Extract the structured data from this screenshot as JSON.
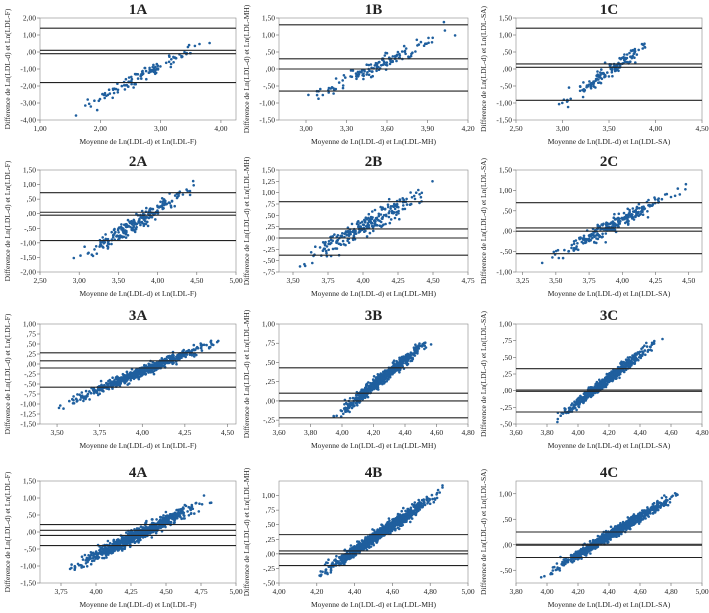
{
  "figure": {
    "point_color": "#1f5f9e",
    "line_color": "#222222"
  },
  "chart_data": [
    {
      "id": "1A",
      "type": "scatter",
      "title": "1A",
      "xlabel": "Moyenne de Ln(LDL-d) et Ln(LDL-F)",
      "ylabel": "Difference de Ln(LDL-d) et Ln(LDL-F)",
      "xlim": [
        1.0,
        4.25
      ],
      "ylim": [
        -4.0,
        2.0
      ],
      "xticks": [
        "1,00",
        "2,00",
        "3,00",
        "4,00"
      ],
      "xtick_values": [
        1,
        2,
        3,
        4
      ],
      "yticks": [
        "-4,00",
        "-3,00",
        "-2,00",
        "-1,00",
        ",00",
        "1,00",
        "2,00"
      ],
      "ytick_values": [
        -4,
        -3,
        -2,
        -1,
        0,
        1,
        2
      ],
      "hlines": [
        1.4,
        0.1,
        -0.1,
        -1.8
      ],
      "n_points": 120,
      "trend": {
        "x": [
          1.4,
          4.0
        ],
        "y": [
          -3.8,
          1.0
        ]
      },
      "spread": 0.12
    },
    {
      "id": "1B",
      "type": "scatter",
      "title": "1B",
      "xlabel": "Moyenne de Ln(LDL-d) et Ln(LDL-MH)",
      "ylabel": "Difference de Ln(LDL-d) et Ln(LDL-MH)",
      "xlim": [
        2.8,
        4.2
      ],
      "ylim": [
        -1.5,
        1.5
      ],
      "xticks": [
        "3,00",
        "3,30",
        "3,60",
        "3,90",
        "4,20"
      ],
      "xtick_values": [
        3.0,
        3.3,
        3.6,
        3.9,
        4.2
      ],
      "yticks": [
        "-1,50",
        "-1,00",
        "-,50",
        ",00",
        ",50",
        "1,00",
        "1,50"
      ],
      "ytick_values": [
        -1.5,
        -1,
        -0.5,
        0,
        0.5,
        1,
        1.5
      ],
      "hlines": [
        1.3,
        0.3,
        0.0,
        -0.65
      ],
      "n_points": 140,
      "trend": {
        "x": [
          2.9,
          4.15
        ],
        "y": [
          -1.1,
          1.25
        ]
      },
      "spread": 0.15
    },
    {
      "id": "1C",
      "type": "scatter",
      "title": "1C",
      "xlabel": "Moyenne de Ln(LDL-d) et Ln(LDL-SA)",
      "ylabel": "Difference de Ln(LDL-d) et Ln(LDL-SA)",
      "xlim": [
        2.5,
        4.5
      ],
      "ylim": [
        -1.5,
        1.5
      ],
      "xticks": [
        "2,50",
        "3,00",
        "3,50",
        "4,00",
        "4,50"
      ],
      "xtick_values": [
        2.5,
        3.0,
        3.5,
        4.0,
        4.5
      ],
      "yticks": [
        "-1,50",
        "-1,00",
        "-,50",
        ",00",
        ",50",
        "1,00",
        "1,50"
      ],
      "ytick_values": [
        -1.5,
        -1,
        -0.5,
        0,
        0.5,
        1,
        1.5
      ],
      "hlines": [
        1.2,
        0.15,
        0.05,
        -0.92
      ],
      "n_points": 140,
      "trend": {
        "x": [
          2.8,
          4.1
        ],
        "y": [
          -1.4,
          1.1
        ]
      },
      "spread": 0.15
    },
    {
      "id": "2A",
      "type": "scatter",
      "title": "2A",
      "xlabel": "Moyenne de Ln(LDL-d) et Ln(LDL-F)",
      "ylabel": "Difference de Ln(LDL-d) et Ln(LDL-F)",
      "xlim": [
        2.5,
        5.0
      ],
      "ylim": [
        -2.0,
        1.5
      ],
      "xticks": [
        "2,50",
        "3,00",
        "3,50",
        "4,00",
        "4,50",
        "5,00"
      ],
      "xtick_values": [
        2.5,
        3.0,
        3.5,
        4.0,
        4.5,
        5.0
      ],
      "yticks": [
        "-2,00",
        "-1,50",
        "-1,00",
        "-,50",
        ",00",
        ",50",
        "1,00",
        "1,50"
      ],
      "ytick_values": [
        -2,
        -1.5,
        -1,
        -0.5,
        0,
        0.5,
        1,
        1.5
      ],
      "hlines": [
        0.72,
        0.05,
        -0.05,
        -0.92
      ],
      "n_points": 240,
      "trend": {
        "x": [
          2.8,
          4.6
        ],
        "y": [
          -1.9,
          1.2
        ]
      },
      "spread": 0.15
    },
    {
      "id": "2B",
      "type": "scatter",
      "title": "2B",
      "xlabel": "Moyenne de Ln(LDL-d) et Ln(LDL-MH)",
      "ylabel": "Difference de Ln(LDL-d) et Ln(LDL-MH)",
      "xlim": [
        3.4,
        4.75
      ],
      "ylim": [
        -0.75,
        1.5
      ],
      "xticks": [
        "3,50",
        "3,75",
        "4,00",
        "4,25",
        "4,50",
        "4,75"
      ],
      "xtick_values": [
        3.5,
        3.75,
        4.0,
        4.25,
        4.5,
        4.75
      ],
      "yticks": [
        "-,75",
        "-,50",
        "-,25",
        ",00",
        ",25",
        ",50",
        ",75",
        "1,00",
        "1,25",
        "1,50"
      ],
      "ytick_values": [
        -0.75,
        -0.5,
        -0.25,
        0,
        0.25,
        0.5,
        0.75,
        1,
        1.25,
        1.5
      ],
      "hlines": [
        0.8,
        0.2,
        0.0,
        -0.38
      ],
      "n_points": 260,
      "trend": {
        "x": [
          3.45,
          4.6
        ],
        "y": [
          -0.7,
          1.3
        ]
      },
      "spread": 0.18
    },
    {
      "id": "2C",
      "type": "scatter",
      "title": "2C",
      "xlabel": "Moyenne de Ln(LDL-d) et Ln(LDL-SA)",
      "ylabel": "Difference de Ln(LDL-d) et Ln(LDL-SA)",
      "xlim": [
        3.2,
        4.6
      ],
      "ylim": [
        -1.0,
        1.5
      ],
      "xticks": [
        "3,25",
        "3,50",
        "3,75",
        "4,00",
        "4,25",
        "4,50"
      ],
      "xtick_values": [
        3.25,
        3.5,
        3.75,
        4.0,
        4.25,
        4.5
      ],
      "yticks": [
        "-1,00",
        "-,50",
        ",00",
        ",50",
        "1,00",
        "1,50"
      ],
      "ytick_values": [
        -1,
        -0.5,
        0,
        0.5,
        1,
        1.5
      ],
      "hlines": [
        0.7,
        0.08,
        0.0,
        -0.55
      ],
      "n_points": 260,
      "trend": {
        "x": [
          3.3,
          4.55
        ],
        "y": [
          -0.9,
          1.2
        ]
      },
      "spread": 0.15
    },
    {
      "id": "3A",
      "type": "scatter",
      "title": "3A",
      "xlabel": "Moyenne de Ln(LDL-d) et Ln(LDL-F)",
      "ylabel": "Difference de Ln(LDL-d) et Ln(LDL-F)",
      "xlim": [
        3.4,
        4.55
      ],
      "ylim": [
        -1.5,
        1.0
      ],
      "xticks": [
        "3,50",
        "3,75",
        "4,00",
        "4,25",
        "4,50"
      ],
      "xtick_values": [
        3.5,
        3.75,
        4.0,
        4.25,
        4.5
      ],
      "yticks": [
        "-1,50",
        "-1,25",
        "-1,00",
        "-,75",
        "-,50",
        "-,25",
        ",00",
        ",25",
        ",50",
        ",75",
        "1,00"
      ],
      "ytick_values": [
        -1.5,
        -1.25,
        -1,
        -0.75,
        -0.5,
        -0.25,
        0,
        0.25,
        0.5,
        0.75,
        1
      ],
      "hlines": [
        0.28,
        0.08,
        -0.1,
        -0.58
      ],
      "n_points": 600,
      "trend": {
        "x": [
          3.45,
          4.52
        ],
        "y": [
          -1.15,
          0.72
        ]
      },
      "spread": 0.1
    },
    {
      "id": "3B",
      "type": "scatter",
      "title": "3B",
      "xlabel": "Moyenne de Ln(LDL-d) et Ln(LDL-MH)",
      "ylabel": "Difference de Ln(LDL-d) et Ln(LDL-MH)",
      "xlim": [
        3.6,
        4.8
      ],
      "ylim": [
        -0.3,
        1.0
      ],
      "xticks": [
        "3,60",
        "3,80",
        "4,00",
        "4,20",
        "4,40",
        "4,60",
        "4,80"
      ],
      "xtick_values": [
        3.6,
        3.8,
        4.0,
        4.2,
        4.4,
        4.6,
        4.8
      ],
      "yticks": [
        "-,25",
        ",00",
        ",25",
        ",50",
        ",75",
        "1,00"
      ],
      "ytick_values": [
        -0.25,
        0,
        0.25,
        0.5,
        0.75,
        1
      ],
      "hlines": [
        0.43,
        0.1,
        0.0,
        -0.22
      ],
      "n_points": 650,
      "trend": {
        "x": [
          3.9,
          4.62
        ],
        "y": [
          -0.3,
          0.9
        ]
      },
      "spread": 0.12
    },
    {
      "id": "3C",
      "type": "scatter",
      "title": "3C",
      "xlabel": "Moyenne de Ln(LDL-d) et Ln(LDL-SA)",
      "ylabel": "Difference de Ln(LDL-d) et Ln(LDL-SA)",
      "xlim": [
        3.6,
        4.8
      ],
      "ylim": [
        -0.5,
        1.0
      ],
      "xticks": [
        "3,60",
        "3,80",
        "4,00",
        "4,20",
        "4,40",
        "4,60",
        "4,80"
      ],
      "xtick_values": [
        3.6,
        3.8,
        4.0,
        4.2,
        4.4,
        4.6,
        4.8
      ],
      "yticks": [
        "-,50",
        "-,25",
        ",00",
        ",25",
        ",50",
        ",75",
        "1,00"
      ],
      "ytick_values": [
        -0.5,
        -0.25,
        0,
        0.25,
        0.5,
        0.75,
        1
      ],
      "hlines": [
        0.33,
        0.01,
        -0.01,
        -0.32
      ],
      "n_points": 650,
      "trend": {
        "x": [
          3.82,
          4.57
        ],
        "y": [
          -0.5,
          0.85
        ]
      },
      "spread": 0.1
    },
    {
      "id": "4A",
      "type": "scatter",
      "title": "4A",
      "xlabel": "Moyenne de Ln(LDL-d) et Ln(LDL-F)",
      "ylabel": "Difference de Ln(LDL-d) et Ln(LDL-F)",
      "xlim": [
        3.6,
        5.0
      ],
      "ylim": [
        -1.5,
        1.5
      ],
      "xticks": [
        "3,75",
        "4,00",
        "4,25",
        "4,50",
        "4,75",
        "5,00"
      ],
      "xtick_values": [
        3.75,
        4.0,
        4.25,
        4.5,
        4.75,
        5.0
      ],
      "yticks": [
        "-1,50",
        "-1,00",
        "-,50",
        ",00",
        ",50",
        "1,00",
        "1,50"
      ],
      "ytick_values": [
        -1.5,
        -1,
        -0.5,
        0,
        0.5,
        1,
        1.5
      ],
      "hlines": [
        0.22,
        0.05,
        -0.1,
        -0.4
      ],
      "n_points": 900,
      "trend": {
        "x": [
          3.75,
          4.85
        ],
        "y": [
          -1.2,
          1.05
        ]
      },
      "spread": 0.12
    },
    {
      "id": "4B",
      "type": "scatter",
      "title": "4B",
      "xlabel": "Moyenne de Ln(LDL-d) et Ln(LDL-MH)",
      "ylabel": "Difference de Ln(LDL-d) et Ln(LDL-MH)",
      "xlim": [
        4.0,
        5.0
      ],
      "ylim": [
        -0.5,
        1.25
      ],
      "xticks": [
        "4,00",
        "4,20",
        "4,40",
        "4,60",
        "4,80",
        "5,00"
      ],
      "xtick_values": [
        4.0,
        4.2,
        4.4,
        4.6,
        4.8,
        5.0
      ],
      "yticks": [
        "-,50",
        "-,25",
        ",00",
        ",25",
        ",50",
        ",75",
        "1,00"
      ],
      "ytick_values": [
        -0.5,
        -0.25,
        0,
        0.25,
        0.5,
        0.75,
        1
      ],
      "hlines": [
        0.33,
        0.05,
        0.0,
        -0.2
      ],
      "n_points": 1000,
      "trend": {
        "x": [
          4.17,
          4.9
        ],
        "y": [
          -0.45,
          1.15
        ]
      },
      "spread": 0.12
    },
    {
      "id": "4C",
      "type": "scatter",
      "title": "4C",
      "xlabel": "Moyenne de Ln(LDL-d) et Ln(LDL-SA)",
      "ylabel": "Difference de Ln(LDL-d) et Ln(LDL-SA)",
      "xlim": [
        3.8,
        5.0
      ],
      "ylim": [
        -0.75,
        1.25
      ],
      "xticks": [
        "3,80",
        "4,00",
        "4,20",
        "4,40",
        "4,60",
        "4,80",
        "5,00"
      ],
      "xtick_values": [
        3.8,
        4.0,
        4.2,
        4.4,
        4.6,
        4.8,
        5.0
      ],
      "yticks": [
        "-,50",
        ",00",
        ",50",
        "1,00"
      ],
      "ytick_values": [
        -0.5,
        0,
        0.5,
        1
      ],
      "hlines": [
        0.25,
        0.01,
        -0.01,
        -0.25
      ],
      "n_points": 1000,
      "trend": {
        "x": [
          3.95,
          4.9
        ],
        "y": [
          -0.65,
          1.1
        ]
      },
      "spread": 0.1
    }
  ]
}
